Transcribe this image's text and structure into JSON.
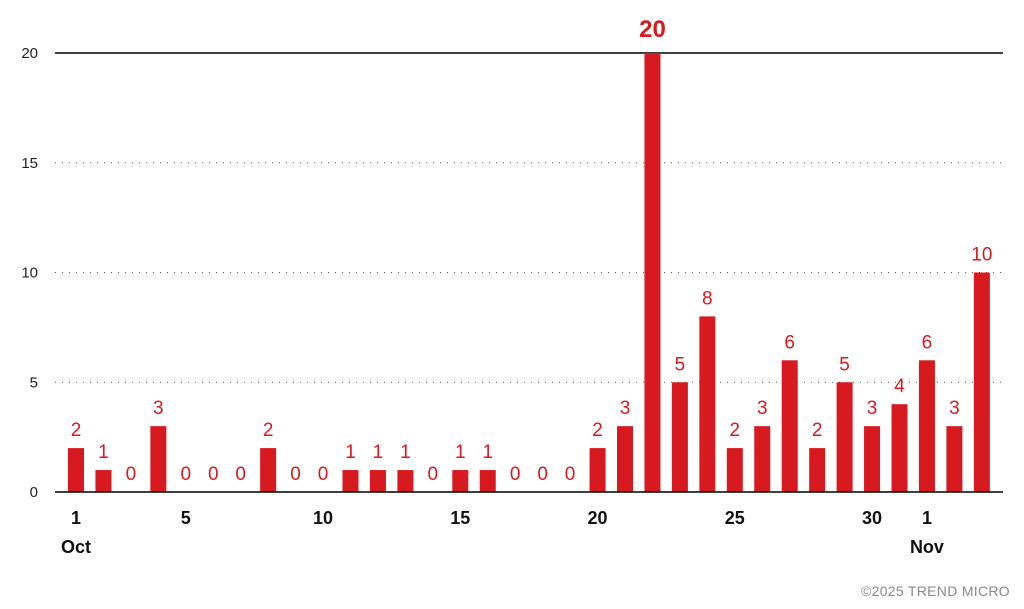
{
  "colors": {
    "bar": "#d71920",
    "label": "#d71920",
    "grid": "#555555",
    "axis": "#000000"
  },
  "copyright": "©2025 TREND MICRO",
  "chart_data": {
    "type": "bar",
    "title": "",
    "xlabel": "",
    "ylabel": "",
    "ylim": [
      0,
      20
    ],
    "yticks": [
      0,
      5,
      10,
      15,
      20
    ],
    "grid": "horizontal dotted",
    "categories": [
      "Oct 1",
      "Oct 2",
      "Oct 3",
      "Oct 4",
      "Oct 5",
      "Oct 6",
      "Oct 7",
      "Oct 8",
      "Oct 9",
      "Oct 10",
      "Oct 11",
      "Oct 12",
      "Oct 13",
      "Oct 14",
      "Oct 15",
      "Oct 16",
      "Oct 17",
      "Oct 18",
      "Oct 19",
      "Oct 20",
      "Oct 21",
      "Oct 22",
      "Oct 23",
      "Oct 24",
      "Oct 25",
      "Oct 26",
      "Oct 27",
      "Oct 28",
      "Oct 29",
      "Oct 30",
      "Oct 31",
      "Nov 1",
      "Nov 2",
      "Nov 3"
    ],
    "values": [
      2,
      1,
      0,
      3,
      0,
      0,
      0,
      2,
      0,
      0,
      1,
      1,
      1,
      0,
      1,
      1,
      0,
      0,
      0,
      2,
      3,
      20,
      5,
      8,
      2,
      3,
      6,
      2,
      5,
      3,
      4,
      6,
      3,
      10
    ],
    "x_tick_labels": [
      {
        "index": 0,
        "label": "1"
      },
      {
        "index": 4,
        "label": "5"
      },
      {
        "index": 9,
        "label": "10"
      },
      {
        "index": 14,
        "label": "15"
      },
      {
        "index": 19,
        "label": "20"
      },
      {
        "index": 24,
        "label": "25"
      },
      {
        "index": 29,
        "label": "30"
      },
      {
        "index": 31,
        "label": "1"
      }
    ],
    "month_labels": [
      {
        "index": 0,
        "label": "Oct"
      },
      {
        "index": 31,
        "label": "Nov"
      }
    ]
  }
}
